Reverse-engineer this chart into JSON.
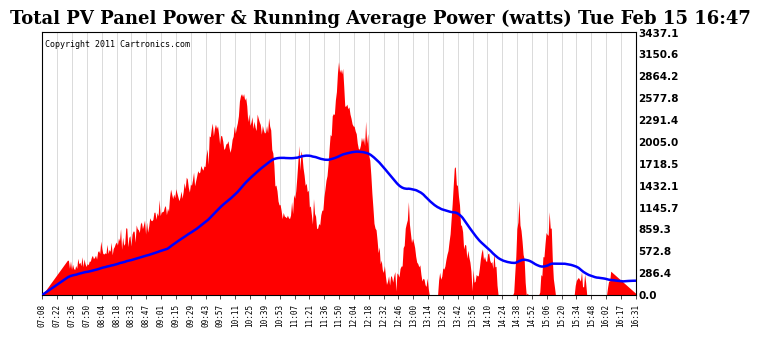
{
  "title": "Total PV Panel Power & Running Average Power (watts) Tue Feb 15 16:47",
  "copyright": "Copyright 2011 Cartronics.com",
  "ylabel_right_values": [
    0.0,
    286.4,
    572.8,
    859.3,
    1145.7,
    1432.1,
    1718.5,
    2005.0,
    2291.4,
    2577.8,
    2864.2,
    3150.6,
    3437.1
  ],
  "ymax": 3437.1,
  "ymin": 0.0,
  "background_color": "#ffffff",
  "plot_bg_color": "#ffffff",
  "fill_color": "#ff0000",
  "line_color": "#0000ff",
  "grid_color": "#cccccc",
  "title_fontsize": 13,
  "tick_labels": [
    "07:08",
    "07:22",
    "07:36",
    "07:50",
    "08:04",
    "08:18",
    "08:33",
    "08:47",
    "09:01",
    "09:15",
    "09:29",
    "09:43",
    "09:57",
    "10:11",
    "10:25",
    "10:39",
    "10:53",
    "11:07",
    "11:21",
    "11:36",
    "11:50",
    "12:04",
    "12:18",
    "12:32",
    "12:46",
    "13:00",
    "13:14",
    "13:28",
    "13:42",
    "13:56",
    "14:10",
    "14:24",
    "14:38",
    "14:52",
    "15:06",
    "15:20",
    "15:34",
    "15:48",
    "16:02",
    "16:17",
    "16:31"
  ]
}
